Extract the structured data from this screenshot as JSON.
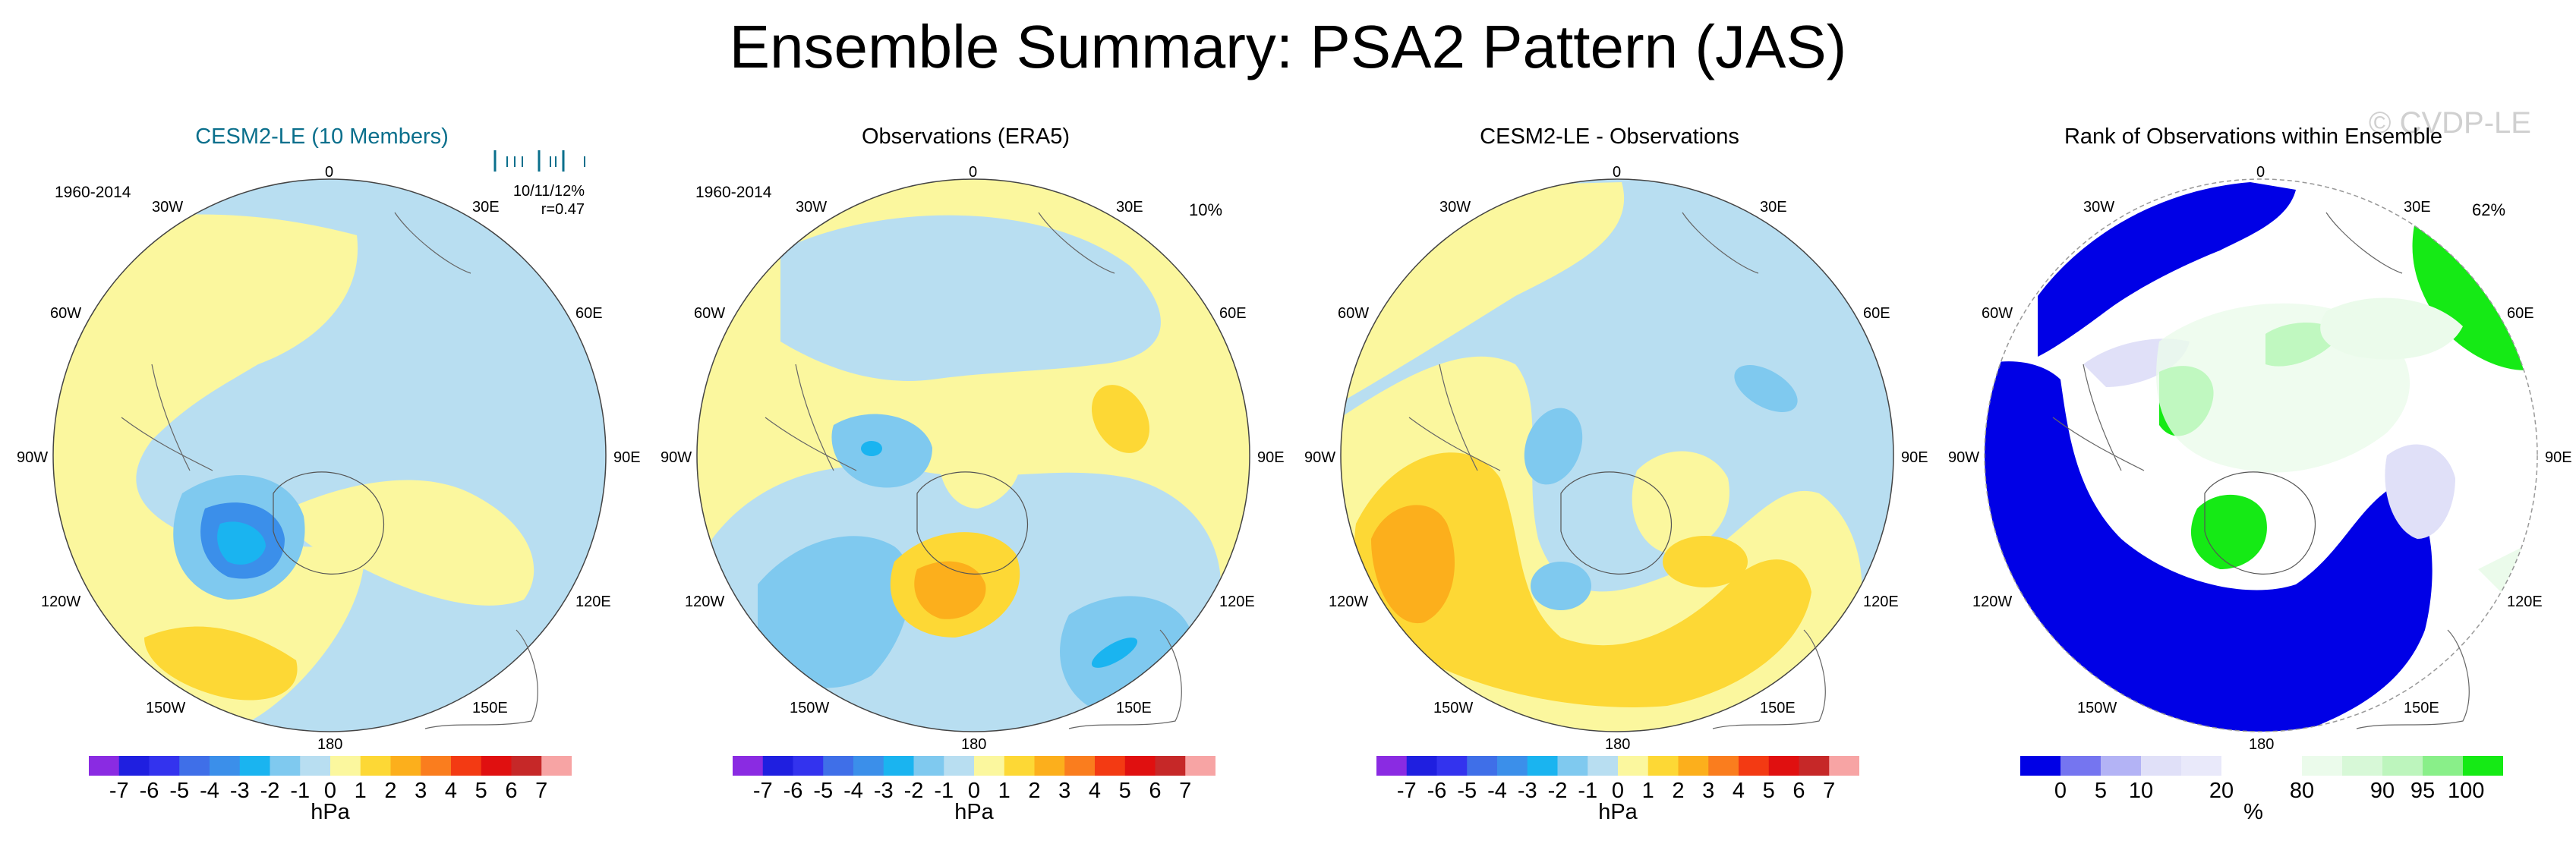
{
  "title": "Ensemble Summary: PSA2 Pattern (JAS)",
  "watermark": "© CVDP-LE",
  "panels": [
    {
      "title": "CESM2-LE (10 Members)",
      "period": "1960-2014",
      "stat1": "10/11/12%",
      "stat2": "r=0.47"
    },
    {
      "title": "Observations (ERA5)",
      "period": "1960-2014",
      "corner": "10%"
    },
    {
      "title": "CESM2-LE - Observations"
    },
    {
      "title": "Rank of Observations within Ensemble",
      "corner": "62%"
    }
  ],
  "lon_labels": {
    "n": "0",
    "s": "180",
    "e": "90E",
    "w": "90W",
    "ne1": "30E",
    "ne2": "60E",
    "se1": "120E",
    "se2": "150E",
    "nw1": "30W",
    "nw2": "60W",
    "sw1": "120W",
    "sw2": "150W"
  },
  "hpa_colorbar": {
    "colors": [
      "#8a2be2",
      "#1f1fe0",
      "#3333ee",
      "#3f6fe8",
      "#3b8fea",
      "#1ab4f0",
      "#7fc9ef",
      "#b8def1",
      "#fbf79e",
      "#fdd835",
      "#fcaf1c",
      "#fa7d1e",
      "#f33a13",
      "#e01010",
      "#c62828",
      "#f7a4a4"
    ],
    "ticks": [
      "-7",
      "-6",
      "-5",
      "-4",
      "-3",
      "-2",
      "-1",
      "0",
      "1",
      "2",
      "3",
      "4",
      "5",
      "6",
      "7"
    ],
    "unit": "hPa"
  },
  "pct_colorbar": {
    "colors": [
      "#0000e6",
      "#7575f0",
      "#b3b3f5",
      "#e0e0f8",
      "#e9e9fa",
      "#ffffff",
      "#ffffff",
      "#ebfbeb",
      "#d7f8d7",
      "#bdf5bd",
      "#89ef89",
      "#15ea15"
    ],
    "ticks": [
      "0",
      "5",
      "10",
      "20",
      "80",
      "90",
      "95",
      "100"
    ],
    "unit": "%"
  }
}
